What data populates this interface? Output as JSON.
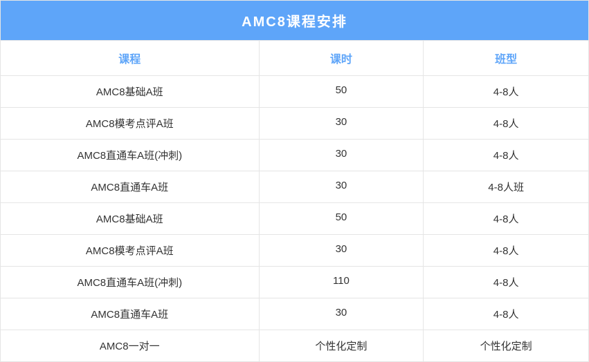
{
  "title": "AMC8课程安排",
  "title_bg_color": "#5ea5f9",
  "title_color": "#ffffff",
  "header_color": "#5ea5f9",
  "border_color": "#e5e5e5",
  "cell_text_color": "#333333",
  "columns": [
    "课程",
    "课时",
    "班型"
  ],
  "column_widths": [
    "44%",
    "28%",
    "28%"
  ],
  "rows": [
    [
      "AMC8基础A班",
      "50",
      "4-8人"
    ],
    [
      "AMC8模考点评A班",
      "30",
      "4-8人"
    ],
    [
      "AMC8直通车A班(冲刺)",
      "30",
      "4-8人"
    ],
    [
      "AMC8直通车A班",
      "30",
      "4-8人班"
    ],
    [
      "AMC8基础A班",
      "50",
      "4-8人"
    ],
    [
      "AMC8模考点评A班",
      "30",
      "4-8人"
    ],
    [
      "AMC8直通车A班(冲刺)",
      "110",
      "4-8人"
    ],
    [
      "AMC8直通车A班",
      "30",
      "4-8人"
    ],
    [
      "AMC8一对一",
      "个性化定制",
      "个性化定制"
    ]
  ]
}
